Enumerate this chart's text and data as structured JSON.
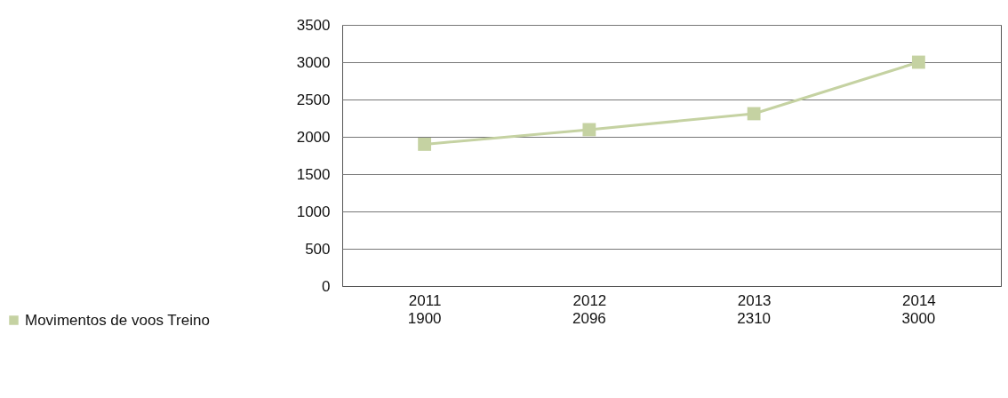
{
  "chart_data": {
    "type": "line",
    "categories": [
      "2011",
      "2012",
      "2013",
      "2014"
    ],
    "series": [
      {
        "name": "Movimentos de voos Treino",
        "color": "#c5d2a2",
        "values": [
          1900,
          2096,
          2310,
          3000
        ]
      }
    ],
    "ylim": [
      0,
      3500
    ],
    "yticks": [
      0,
      500,
      1000,
      1500,
      2000,
      2500,
      3000,
      3500
    ],
    "grid": "y",
    "marker": "square",
    "line_style": "solid",
    "data_labels": true,
    "legend": "bottom left"
  }
}
